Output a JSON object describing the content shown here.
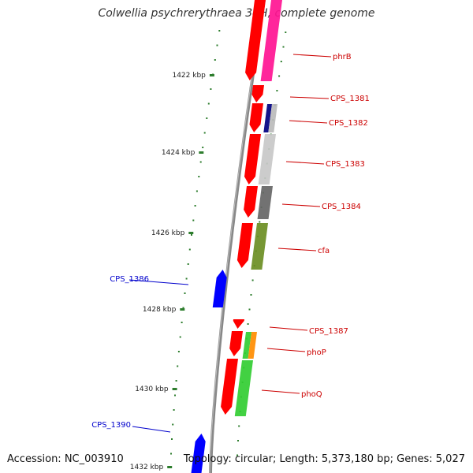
{
  "title": "Colwellia psychrerythraea 34H, complete genome",
  "footer": {
    "accession": "Accession: NC_003910",
    "topology": "Topology: circular; Length: 5,373,180 bp; Genes: 5,027"
  },
  "colors": {
    "backbone": "#888888",
    "minor_tick": "#2d7d2d",
    "major_tick": "#2d7d2d",
    "ruler_label": "#222222",
    "label_forward_strand": "#cc0000",
    "label_reverse_strand": "#0000cc"
  },
  "ruler_ticks": [
    {
      "label": "1422 kbp"
    },
    {
      "label": "1424 kbp"
    },
    {
      "label": "1426 kbp"
    },
    {
      "label": "1428 kbp"
    },
    {
      "label": "1430 kbp"
    },
    {
      "label": "1432 kbp"
    }
  ],
  "genes": [
    {
      "id": "gene-phrb",
      "label": "phrB",
      "strand": "+",
      "arrow_color": "#ff0000",
      "cog_colors": [
        "#ff1493",
        "#ff1493"
      ]
    },
    {
      "id": "gene-cps-1381",
      "label": "CPS_1381",
      "strand": "+",
      "arrow_color": "#ff0000",
      "cog_colors": []
    },
    {
      "id": "gene-cps-1382",
      "label": "CPS_1382",
      "strand": "+",
      "arrow_color": "#ff0000",
      "cog_colors": [
        "#000080",
        "#bbbbbb"
      ]
    },
    {
      "id": "gene-cps-1383",
      "label": "CPS_1383",
      "strand": "+",
      "arrow_color": "#ff0000",
      "cog_colors": [
        "#c8c8c8"
      ]
    },
    {
      "id": "gene-cps-1384",
      "label": "CPS_1384",
      "strand": "+",
      "arrow_color": "#ff0000",
      "cog_colors": [
        "#666666"
      ]
    },
    {
      "id": "gene-cfa",
      "label": "cfa",
      "strand": "+",
      "arrow_color": "#ff0000",
      "cog_colors": [
        "#6b8e23"
      ]
    },
    {
      "id": "gene-cps-1386",
      "label": "CPS_1386",
      "strand": "-",
      "arrow_color": "#0000ff",
      "cog_colors": []
    },
    {
      "id": "gene-cps-1387",
      "label": "CPS_1387",
      "strand": "+",
      "arrow_color": "#ff0000",
      "cog_colors": []
    },
    {
      "id": "gene-phop",
      "label": "phoP",
      "strand": "+",
      "arrow_color": "#ff0000",
      "cog_colors": [
        "#32cd32",
        "#ff8c00"
      ]
    },
    {
      "id": "gene-phoq",
      "label": "phoQ",
      "strand": "+",
      "arrow_color": "#ff0000",
      "cog_colors": [
        "#32cd32"
      ]
    },
    {
      "id": "gene-cps-1390",
      "label": "CPS_1390",
      "strand": "-",
      "arrow_color": "#0000ff",
      "cog_colors": []
    }
  ]
}
